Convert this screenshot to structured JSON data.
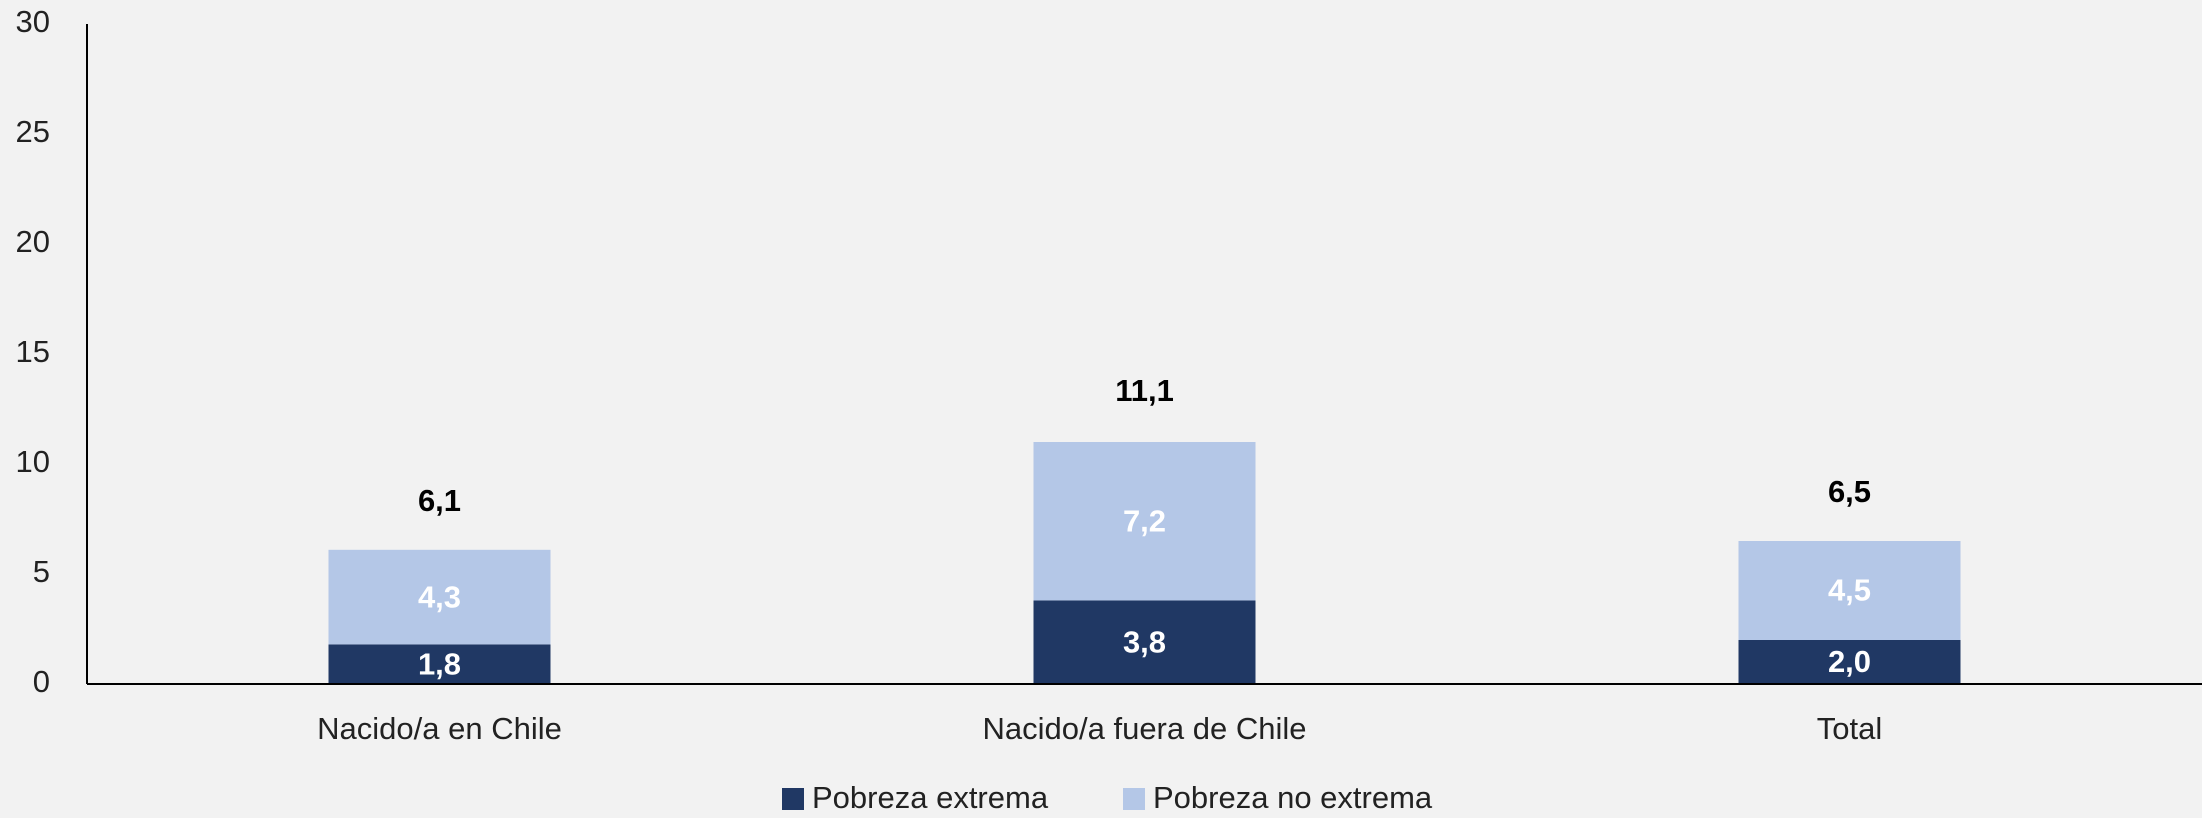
{
  "chart_data": {
    "type": "stacked_bar",
    "categories": [
      "Nacido/a en Chile",
      "Nacido/a fuera de Chile",
      "Total"
    ],
    "series": [
      {
        "name": "Pobreza extrema",
        "color": "#203864",
        "values": [
          1.8,
          3.8,
          2.0
        ],
        "value_labels": [
          "1,8",
          "3,8",
          "2,0"
        ]
      },
      {
        "name": "Pobreza no extrema",
        "color": "#b4c7e7",
        "values": [
          4.3,
          7.2,
          4.5
        ],
        "value_labels": [
          "4,3",
          "7,2",
          "4,5"
        ]
      }
    ],
    "totals": [
      6.1,
      11.1,
      6.5
    ],
    "total_labels": [
      "6,1",
      "11,1",
      "6,5"
    ],
    "ylim": [
      0,
      30
    ],
    "yticks": [
      0,
      5,
      10,
      15,
      20,
      25,
      30
    ],
    "grid": false
  }
}
